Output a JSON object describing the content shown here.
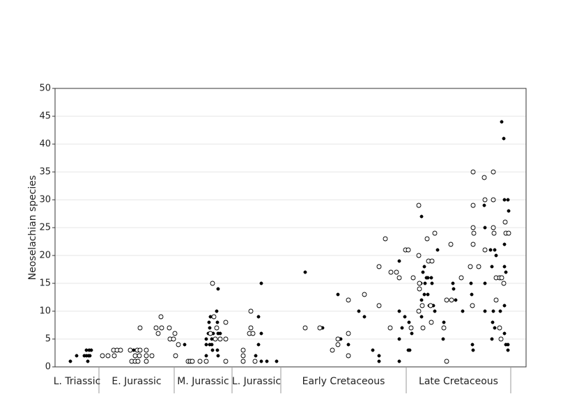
{
  "chart_data": {
    "type": "scatter",
    "y_label": "Neoselachian species",
    "xlim": [
      0,
      676
    ],
    "ylim": [
      0,
      50
    ],
    "yticks": [
      0,
      5,
      10,
      15,
      20,
      25,
      30,
      35,
      40,
      45,
      50
    ],
    "grid": true,
    "periods": [
      {
        "label": "L. Triassic",
        "start": 0,
        "end": 63
      },
      {
        "label": "E. Jurassic",
        "start": 63,
        "end": 171
      },
      {
        "label": "M. Jurassic",
        "start": 171,
        "end": 254
      },
      {
        "label": "L. Jurassic",
        "start": 254,
        "end": 324
      },
      {
        "label": "Early Cretaceous",
        "start": 324,
        "end": 504
      },
      {
        "label": "Late Cretaceous",
        "start": 504,
        "end": 654
      }
    ],
    "series": [
      {
        "color": "#000000",
        "marker": "filled",
        "x": [
          22,
          31,
          42,
          45,
          48,
          47,
          45,
          49,
          52,
          50,
          113,
          186,
          217,
          217,
          220,
          222,
          221,
          223,
          222,
          225,
          225,
          226,
          227,
          232,
          233,
          234,
          233,
          237,
          234,
          234,
          217,
          296,
          292,
          296,
          292,
          288,
          304,
          318,
          296,
          359,
          384,
          406,
          410,
          421,
          436,
          444,
          456,
          465,
          465,
          494,
          494,
          494,
          494,
          498,
          502,
          508,
          507,
          509,
          512,
          525,
          526,
          526,
          528,
          526,
          530,
          530,
          531,
          533,
          535,
          535,
          537,
          540,
          541,
          543,
          545,
          549,
          557,
          558,
          571,
          572,
          575,
          585,
          597,
          598,
          598,
          599,
          600,
          616,
          617,
          617,
          617,
          625,
          627,
          629,
          628,
          627,
          631,
          631,
          633,
          639,
          641,
          644,
          645,
          645,
          645,
          647,
          645,
          645,
          647,
          650,
          650,
          651,
          650
        ],
        "values": [
          1,
          2,
          2,
          2,
          2,
          1,
          3,
          3,
          3,
          2,
          3,
          4,
          5,
          4,
          6,
          7,
          8,
          9,
          4,
          5,
          4,
          3,
          6,
          10,
          8,
          6,
          3,
          6,
          14,
          2,
          2,
          15,
          9,
          6,
          4,
          2,
          1,
          1,
          1,
          17,
          7,
          13,
          5,
          4,
          10,
          9,
          3,
          2,
          1,
          19,
          10,
          5,
          1,
          7,
          9,
          8,
          3,
          3,
          6,
          15,
          12,
          9,
          17,
          27,
          18,
          13,
          15,
          16,
          16,
          13,
          11,
          16,
          15,
          11,
          10,
          21,
          5,
          8,
          15,
          14,
          12,
          10,
          15,
          13,
          11,
          4,
          3,
          29,
          25,
          15,
          10,
          21,
          18,
          10,
          8,
          5,
          21,
          7,
          20,
          10,
          44,
          41,
          30,
          22,
          18,
          17,
          11,
          6,
          4,
          4,
          30,
          28,
          3
        ]
      },
      {
        "color": "#000000",
        "marker": "open",
        "x": [
          68,
          76,
          84,
          89,
          94,
          85,
          108,
          110,
          115,
          119,
          115,
          118,
          122,
          121,
          131,
          131,
          131,
          139,
          122,
          145,
          148,
          152,
          153,
          164,
          165,
          170,
          172,
          177,
          173,
          191,
          194,
          197,
          208,
          217,
          226,
          228,
          230,
          237,
          245,
          245,
          245,
          223,
          232,
          270,
          270,
          270,
          281,
          281,
          279,
          284,
          287,
          359,
          380,
          398,
          406,
          406,
          421,
          421,
          421,
          444,
          465,
          465,
          474,
          481,
          482,
          490,
          494,
          503,
          507,
          511,
          514,
          522,
          522,
          523,
          523,
          522,
          527,
          528,
          534,
          536,
          539,
          540,
          541,
          545,
          558,
          562,
          562,
          568,
          569,
          583,
          596,
          599,
          600,
          600,
          600,
          600,
          601,
          608,
          616,
          617,
          617,
          629,
          629,
          629,
          630,
          633,
          633,
          638,
          638,
          640,
          641,
          644,
          646,
          647,
          651
        ],
        "values": [
          2,
          2,
          3,
          3,
          3,
          2,
          3,
          1,
          1,
          1,
          2,
          3,
          3,
          2,
          3,
          1,
          2,
          2,
          7,
          7,
          6,
          9,
          7,
          7,
          5,
          5,
          6,
          4,
          2,
          1,
          1,
          1,
          1,
          1,
          15,
          9,
          5,
          5,
          8,
          5,
          1,
          6,
          7,
          3,
          2,
          1,
          10,
          7,
          6,
          6,
          1,
          7,
          7,
          3,
          5,
          4,
          12,
          6,
          2,
          13,
          18,
          11,
          23,
          7,
          17,
          17,
          16,
          21,
          21,
          7,
          16,
          29,
          20,
          15,
          14,
          10,
          11,
          7,
          23,
          19,
          11,
          8,
          19,
          24,
          7,
          12,
          1,
          22,
          12,
          16,
          18,
          11,
          35,
          29,
          25,
          22,
          24,
          18,
          34,
          30,
          21,
          35,
          30,
          25,
          24,
          16,
          12,
          16,
          7,
          5,
          16,
          15,
          26,
          24,
          24
        ]
      }
    ]
  }
}
